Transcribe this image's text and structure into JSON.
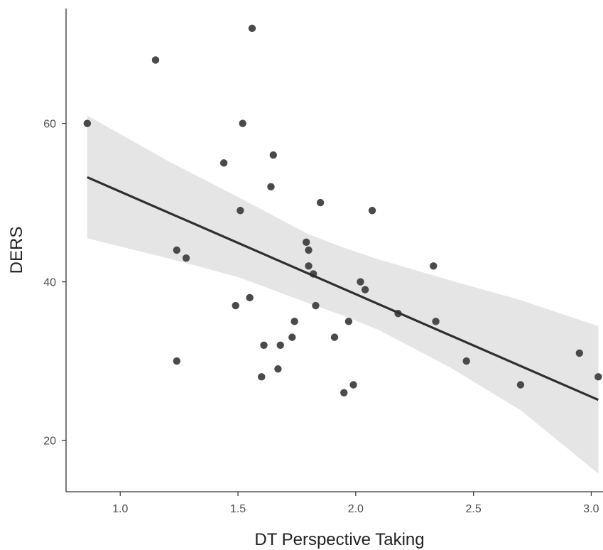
{
  "chart_data": {
    "type": "scatter",
    "xlabel": "DT Perspective Taking",
    "ylabel": "DERS",
    "xlim": [
      0.77,
      3.05
    ],
    "ylim": [
      13.5,
      74.5
    ],
    "xticks": [
      1.0,
      1.5,
      2.0,
      2.5,
      3.0
    ],
    "xtick_labels": [
      "1.0",
      "1.5",
      "2.0",
      "2.5",
      "3.0"
    ],
    "yticks": [
      20,
      40,
      60
    ],
    "ytick_labels": [
      "20",
      "40",
      "60"
    ],
    "grid": false,
    "points": [
      {
        "x": 0.86,
        "y": 60
      },
      {
        "x": 1.15,
        "y": 68
      },
      {
        "x": 1.24,
        "y": 30
      },
      {
        "x": 1.24,
        "y": 44
      },
      {
        "x": 1.28,
        "y": 43
      },
      {
        "x": 1.44,
        "y": 55
      },
      {
        "x": 1.49,
        "y": 37
      },
      {
        "x": 1.51,
        "y": 49
      },
      {
        "x": 1.52,
        "y": 60
      },
      {
        "x": 1.55,
        "y": 38
      },
      {
        "x": 1.56,
        "y": 72
      },
      {
        "x": 1.6,
        "y": 28
      },
      {
        "x": 1.61,
        "y": 32
      },
      {
        "x": 1.64,
        "y": 52
      },
      {
        "x": 1.65,
        "y": 56
      },
      {
        "x": 1.67,
        "y": 29
      },
      {
        "x": 1.68,
        "y": 32
      },
      {
        "x": 1.73,
        "y": 33
      },
      {
        "x": 1.74,
        "y": 35
      },
      {
        "x": 1.79,
        "y": 45
      },
      {
        "x": 1.8,
        "y": 42
      },
      {
        "x": 1.8,
        "y": 44
      },
      {
        "x": 1.82,
        "y": 41
      },
      {
        "x": 1.83,
        "y": 37
      },
      {
        "x": 1.85,
        "y": 50
      },
      {
        "x": 1.91,
        "y": 33
      },
      {
        "x": 1.95,
        "y": 26
      },
      {
        "x": 1.97,
        "y": 35
      },
      {
        "x": 1.99,
        "y": 27
      },
      {
        "x": 2.02,
        "y": 40
      },
      {
        "x": 2.04,
        "y": 39
      },
      {
        "x": 2.07,
        "y": 49
      },
      {
        "x": 2.18,
        "y": 36
      },
      {
        "x": 2.33,
        "y": 42
      },
      {
        "x": 2.34,
        "y": 35
      },
      {
        "x": 2.47,
        "y": 30
      },
      {
        "x": 2.7,
        "y": 27
      },
      {
        "x": 2.95,
        "y": 31
      },
      {
        "x": 3.03,
        "y": 28
      }
    ],
    "regression_line": {
      "x": [
        0.86,
        3.03
      ],
      "y": [
        53.2,
        25.1
      ]
    },
    "confidence_band": {
      "x": [
        0.86,
        1.2,
        1.5,
        1.8,
        1.95,
        2.1,
        2.4,
        2.7,
        3.03
      ],
      "upper": [
        61.0,
        55.3,
        50.7,
        46.0,
        44.3,
        42.8,
        40.2,
        37.7,
        34.4
      ],
      "lower": [
        45.5,
        43.0,
        40.6,
        37.3,
        35.7,
        33.9,
        29.2,
        23.8,
        15.8
      ]
    },
    "colors": {
      "point": "#4a4a4a",
      "line": "#2f2f2f",
      "band": "#e5e5e5",
      "axis": "#333333"
    }
  }
}
